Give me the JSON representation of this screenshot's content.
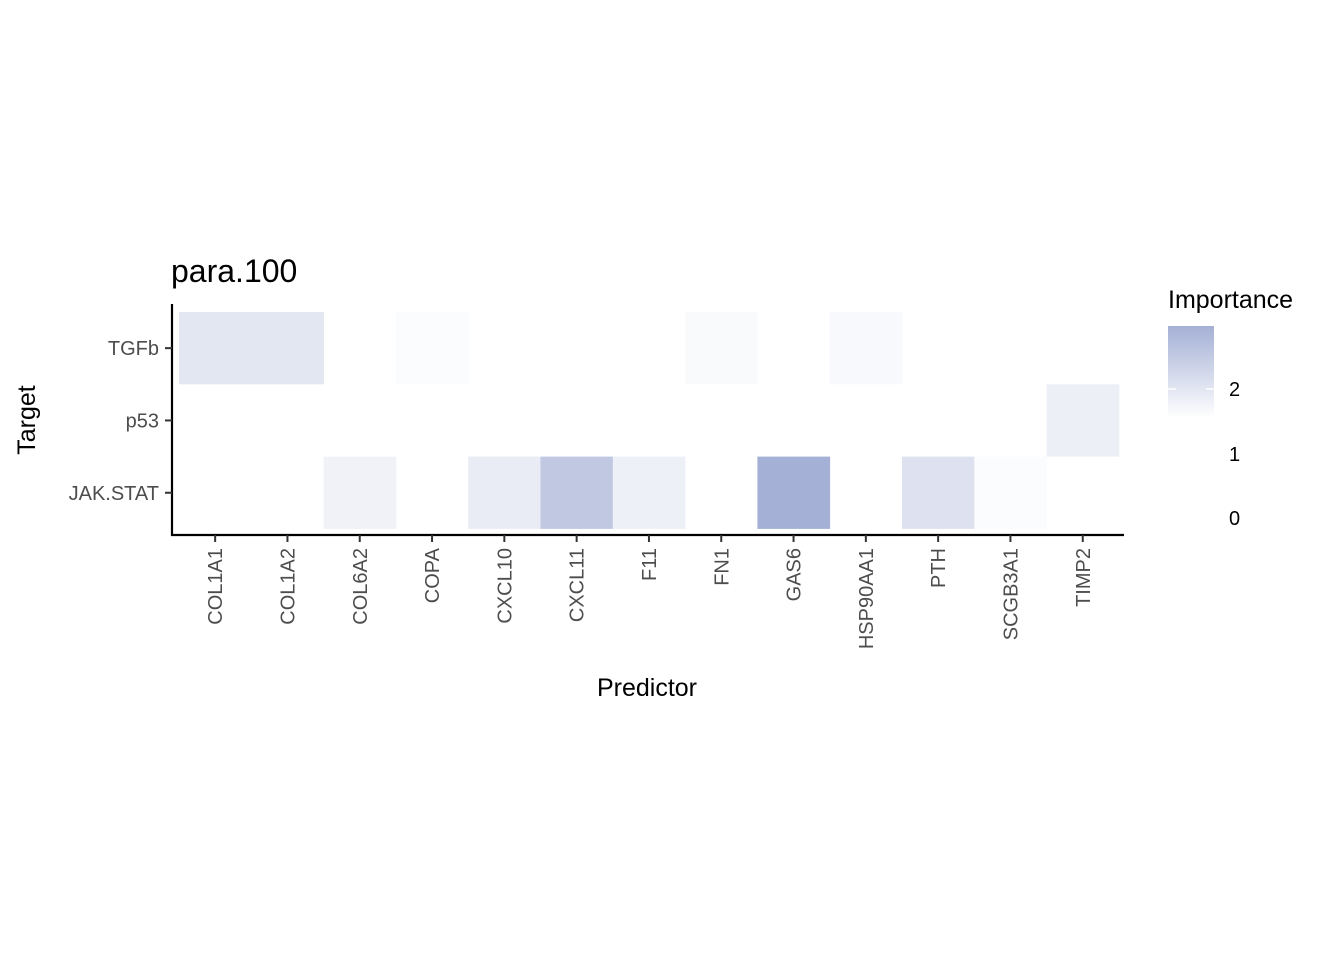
{
  "chart_data": {
    "type": "heatmap",
    "title": "para.100",
    "xlabel": "Predictor",
    "ylabel": "Target",
    "x_categories": [
      "COL1A1",
      "COL1A2",
      "COL6A2",
      "COPA",
      "CXCL10",
      "CXCL11",
      "F11",
      "FN1",
      "GAS6",
      "HSP90AA1",
      "PTH",
      "SCGB3A1",
      "TIMP2"
    ],
    "y_categories": [
      "TGFb",
      "p53",
      "JAK.STAT"
    ],
    "values": [
      [
        0.75,
        0.75,
        0.0,
        0.1,
        0.0,
        0.0,
        0.0,
        0.15,
        0.0,
        0.2,
        0.0,
        0.0,
        0.0
      ],
      [
        0.0,
        0.0,
        0.0,
        0.0,
        0.0,
        0.0,
        0.0,
        0.0,
        0.0,
        0.0,
        0.0,
        0.0,
        0.5
      ],
      [
        0.0,
        0.0,
        0.4,
        0.0,
        0.6,
        1.7,
        0.45,
        0.0,
        2.45,
        0.0,
        0.9,
        0.1,
        0.0
      ]
    ],
    "legend": {
      "title": "Importance",
      "ticks": [
        0,
        1,
        2
      ],
      "color_low": "#ffffff",
      "color_high": "#a4b0d5",
      "range": [
        0,
        2.45
      ]
    },
    "grid": false,
    "legend_placement": "right"
  }
}
